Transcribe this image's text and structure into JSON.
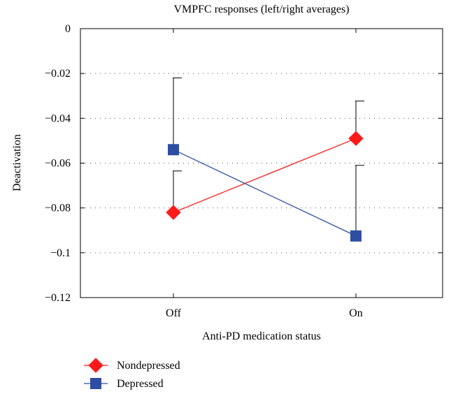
{
  "chart_data": {
    "type": "line",
    "title": "VMPFC responses (left/right averages)",
    "xlabel": "Anti-PD medication status",
    "ylabel": "Deactivation",
    "categories": [
      "Off",
      "On"
    ],
    "ylim": [
      -0.12,
      0
    ],
    "yticks": [
      0,
      -0.02,
      -0.04,
      -0.06,
      -0.08,
      -0.1,
      -0.12
    ],
    "ytick_labels": [
      "0",
      "−0.02",
      "−0.04",
      "−0.06",
      "−0.08",
      "−0.1",
      "−0.12"
    ],
    "grid": "horizontal dotted",
    "legend_position": "bottom-left",
    "series": [
      {
        "name": "Nondepressed",
        "color": "#ff1a1a",
        "marker": "diamond",
        "values": [
          -0.082,
          -0.049
        ],
        "error_upper": [
          -0.0635,
          -0.0323
        ]
      },
      {
        "name": "Depressed",
        "color": "#2f4ea2",
        "marker": "square",
        "values": [
          -0.054,
          -0.0925
        ],
        "error_upper": [
          -0.022,
          -0.061
        ]
      }
    ]
  }
}
